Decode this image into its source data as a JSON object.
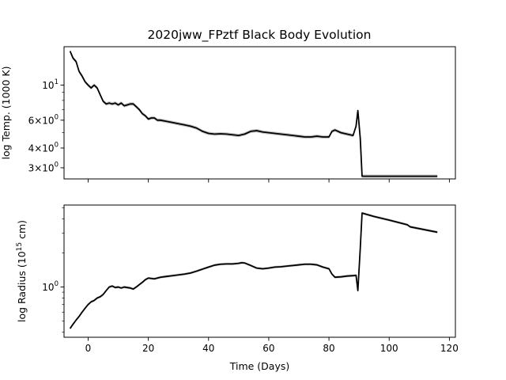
{
  "figure": {
    "title": "2020jww_FPztf Black Body Evolution"
  },
  "chart_data": [
    {
      "type": "line",
      "title": "2020jww_FPztf Black Body Evolution",
      "ylabel": "log Temp. (1000 K)",
      "xlabel": "",
      "yscale": "log",
      "xlim": [
        -8,
        122
      ],
      "ylim": [
        2.55,
        17.5
      ],
      "x_ticks": [
        0,
        20,
        40,
        60,
        80,
        100,
        120
      ],
      "y_ticks": [
        {
          "value": 10,
          "label": "10"
        },
        {
          "value": 6,
          "label": "6×10"
        },
        {
          "value": 4,
          "label": "4×10"
        },
        {
          "value": 3,
          "label": "3×10"
        }
      ],
      "grid": false,
      "series": [
        {
          "color": "#000000",
          "band_color": "#999999",
          "x": [
            -6,
            -5,
            -4,
            -3,
            -2,
            -1,
            0,
            1,
            2,
            3,
            4,
            5,
            6,
            7,
            8,
            9,
            10,
            11,
            12,
            13,
            14,
            15,
            16,
            17,
            18,
            19,
            20,
            21,
            22,
            23,
            24,
            26,
            28,
            30,
            32,
            34,
            36,
            38,
            40,
            42,
            44,
            46,
            48,
            50,
            51,
            52,
            54,
            56,
            58,
            60,
            62,
            64,
            66,
            68,
            70,
            72,
            74,
            76,
            78,
            80,
            81,
            82,
            84,
            86,
            88,
            89,
            89.6,
            90.4,
            91,
            100,
            110,
            116
          ],
          "y": [
            16.4,
            14.8,
            14.1,
            12.2,
            11.4,
            10.5,
            10.0,
            9.6,
            10.0,
            9.6,
            8.7,
            7.9,
            7.6,
            7.7,
            7.6,
            7.7,
            7.5,
            7.7,
            7.4,
            7.5,
            7.6,
            7.6,
            7.3,
            7.0,
            6.6,
            6.4,
            6.1,
            6.2,
            6.2,
            6.0,
            6.0,
            5.9,
            5.8,
            5.7,
            5.6,
            5.5,
            5.35,
            5.1,
            4.95,
            4.9,
            4.92,
            4.9,
            4.85,
            4.8,
            4.85,
            4.9,
            5.1,
            5.15,
            5.05,
            5.0,
            4.95,
            4.9,
            4.85,
            4.8,
            4.75,
            4.7,
            4.7,
            4.75,
            4.7,
            4.7,
            5.1,
            5.2,
            5.0,
            4.9,
            4.8,
            5.5,
            6.9,
            4.6,
            2.65,
            2.65,
            2.65,
            2.65
          ]
        }
      ]
    },
    {
      "type": "line",
      "title": "",
      "ylabel": "log Radius (10",
      "ylabel_exponent": "15",
      "ylabel_suffix": " cm)",
      "xlabel": "Time (Days)",
      "yscale": "log",
      "xlim": [
        -8,
        122
      ],
      "ylim": [
        0.36,
        5.3
      ],
      "x_ticks": [
        0,
        20,
        40,
        60,
        80,
        100,
        120
      ],
      "y_ticks": [
        {
          "value": 1,
          "label": "10"
        }
      ],
      "grid": false,
      "series": [
        {
          "color": "#000000",
          "band_color": "#999999",
          "x": [
            -6,
            -5,
            -4,
            -3,
            -2,
            -1,
            0,
            1,
            2,
            3,
            4,
            5,
            6,
            7,
            8,
            9,
            10,
            11,
            12,
            13,
            14,
            15,
            16,
            17,
            18,
            19,
            20,
            22,
            24,
            26,
            28,
            30,
            32,
            34,
            36,
            38,
            40,
            42,
            44,
            46,
            48,
            50,
            51,
            52,
            54,
            56,
            58,
            60,
            62,
            64,
            66,
            68,
            70,
            72,
            74,
            76,
            78,
            80,
            81,
            82,
            84,
            86,
            88,
            89,
            89.6,
            90.4,
            91,
            95,
            100,
            106,
            107,
            116
          ],
          "y": [
            0.43,
            0.47,
            0.51,
            0.55,
            0.6,
            0.65,
            0.7,
            0.74,
            0.76,
            0.8,
            0.82,
            0.86,
            0.93,
            1.0,
            1.02,
            0.99,
            1.0,
            0.98,
            1.0,
            0.99,
            0.98,
            0.96,
            1.0,
            1.05,
            1.1,
            1.16,
            1.2,
            1.18,
            1.22,
            1.24,
            1.26,
            1.28,
            1.3,
            1.33,
            1.38,
            1.44,
            1.5,
            1.56,
            1.59,
            1.6,
            1.6,
            1.62,
            1.64,
            1.63,
            1.55,
            1.47,
            1.45,
            1.47,
            1.5,
            1.51,
            1.53,
            1.55,
            1.57,
            1.59,
            1.59,
            1.57,
            1.5,
            1.45,
            1.3,
            1.22,
            1.23,
            1.25,
            1.26,
            1.27,
            0.93,
            2.2,
            4.5,
            4.2,
            3.9,
            3.55,
            3.4,
            3.05
          ]
        }
      ]
    }
  ]
}
